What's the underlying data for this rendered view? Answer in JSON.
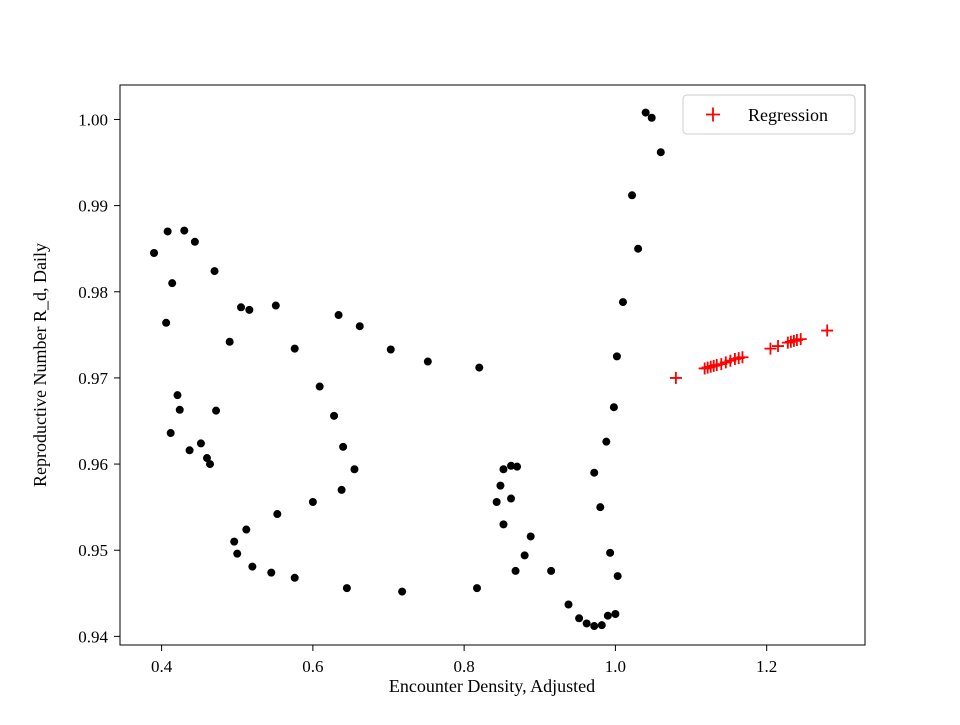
{
  "figure": {
    "background": "#ffffff",
    "legend": {
      "label": "Regression",
      "marker": "plus",
      "marker_color": "#ff0000",
      "position": "upper right"
    }
  },
  "chart_data": {
    "type": "scatter",
    "title": "",
    "xlabel": "Encounter Density, Adjusted",
    "ylabel": "Reproductive Number R_d, Daily",
    "xlim": [
      0.345,
      1.33
    ],
    "ylim": [
      0.939,
      1.004
    ],
    "xticks": [
      0.4,
      0.6,
      0.8,
      1.0,
      1.2
    ],
    "xtick_labels": [
      "0.4",
      "0.6",
      "0.8",
      "1.0",
      "1.2"
    ],
    "yticks": [
      0.94,
      0.95,
      0.96,
      0.97,
      0.98,
      0.99,
      1.0
    ],
    "ytick_labels": [
      "0.94",
      "0.95",
      "0.96",
      "0.97",
      "0.98",
      "0.99",
      "1.00"
    ],
    "grid": false,
    "legend_position": "upper right",
    "series": [
      {
        "name": "data",
        "marker": "circle",
        "color": "#000000",
        "points": [
          [
            0.39,
            0.9845
          ],
          [
            0.408,
            0.987
          ],
          [
            0.43,
            0.9871
          ],
          [
            0.414,
            0.981
          ],
          [
            0.444,
            0.9858
          ],
          [
            0.47,
            0.9824
          ],
          [
            0.406,
            0.9764
          ],
          [
            0.49,
            0.9742
          ],
          [
            0.505,
            0.9782
          ],
          [
            0.516,
            0.9779
          ],
          [
            0.551,
            0.9784
          ],
          [
            0.576,
            0.9734
          ],
          [
            0.634,
            0.9773
          ],
          [
            0.662,
            0.976
          ],
          [
            0.703,
            0.9733
          ],
          [
            0.752,
            0.9719
          ],
          [
            0.82,
            0.9712
          ],
          [
            0.421,
            0.968
          ],
          [
            0.424,
            0.9663
          ],
          [
            0.412,
            0.9636
          ],
          [
            0.437,
            0.9616
          ],
          [
            0.452,
            0.9624
          ],
          [
            0.46,
            0.9607
          ],
          [
            0.464,
            0.96
          ],
          [
            0.472,
            0.9662
          ],
          [
            0.609,
            0.969
          ],
          [
            0.628,
            0.9656
          ],
          [
            0.64,
            0.962
          ],
          [
            0.655,
            0.9594
          ],
          [
            0.638,
            0.957
          ],
          [
            0.6,
            0.9556
          ],
          [
            0.553,
            0.9542
          ],
          [
            0.512,
            0.9524
          ],
          [
            0.496,
            0.951
          ],
          [
            0.5,
            0.9496
          ],
          [
            0.52,
            0.9481
          ],
          [
            0.545,
            0.9474
          ],
          [
            0.576,
            0.9468
          ],
          [
            0.645,
            0.9456
          ],
          [
            0.718,
            0.9452
          ],
          [
            0.817,
            0.9456
          ],
          [
            0.848,
            0.9575
          ],
          [
            0.852,
            0.9594
          ],
          [
            0.862,
            0.9598
          ],
          [
            0.87,
            0.9597
          ],
          [
            0.843,
            0.9556
          ],
          [
            0.862,
            0.956
          ],
          [
            0.852,
            0.953
          ],
          [
            0.868,
            0.9476
          ],
          [
            0.88,
            0.9494
          ],
          [
            0.888,
            0.9516
          ],
          [
            0.915,
            0.9476
          ],
          [
            0.938,
            0.9437
          ],
          [
            0.952,
            0.9421
          ],
          [
            0.962,
            0.9415
          ],
          [
            0.972,
            0.9412
          ],
          [
            0.982,
            0.9413
          ],
          [
            0.99,
            0.9424
          ],
          [
            1.0,
            0.9426
          ],
          [
            1.003,
            0.947
          ],
          [
            0.993,
            0.9497
          ],
          [
            0.98,
            0.955
          ],
          [
            0.972,
            0.959
          ],
          [
            0.988,
            0.9626
          ],
          [
            0.998,
            0.9666
          ],
          [
            1.002,
            0.9725
          ],
          [
            1.01,
            0.9788
          ],
          [
            1.03,
            0.985
          ],
          [
            1.022,
            0.9912
          ],
          [
            1.04,
            1.0008
          ],
          [
            1.048,
            1.0002
          ],
          [
            1.06,
            0.9962
          ]
        ]
      },
      {
        "name": "Regression",
        "marker": "plus",
        "color": "#ff0000",
        "points": [
          [
            1.08,
            0.97
          ],
          [
            1.118,
            0.9711
          ],
          [
            1.122,
            0.9712
          ],
          [
            1.126,
            0.9713
          ],
          [
            1.13,
            0.9714
          ],
          [
            1.134,
            0.9715
          ],
          [
            1.14,
            0.9716
          ],
          [
            1.146,
            0.9718
          ],
          [
            1.152,
            0.972
          ],
          [
            1.158,
            0.9722
          ],
          [
            1.163,
            0.9723
          ],
          [
            1.168,
            0.9724
          ],
          [
            1.205,
            0.9734
          ],
          [
            1.215,
            0.9737
          ],
          [
            1.228,
            0.9741
          ],
          [
            1.232,
            0.9742
          ],
          [
            1.236,
            0.9743
          ],
          [
            1.24,
            0.9744
          ],
          [
            1.245,
            0.9745
          ],
          [
            1.28,
            0.9755
          ]
        ]
      }
    ]
  }
}
